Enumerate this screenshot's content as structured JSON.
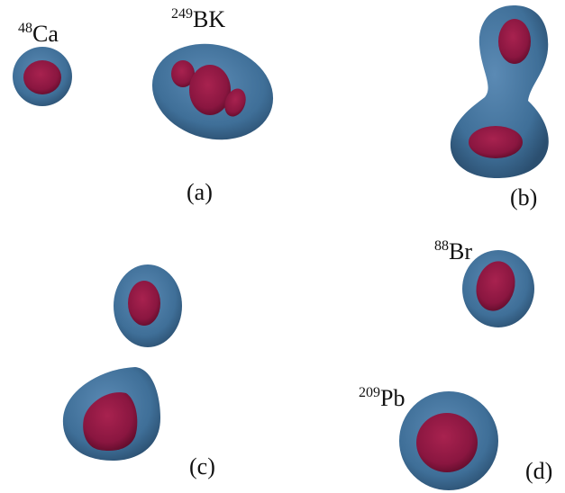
{
  "panels": [
    {
      "label": "(a)",
      "nuclei": [
        {
          "mass": "48",
          "symbol": "Ca"
        },
        {
          "mass": "249",
          "symbol": "BK"
        }
      ]
    },
    {
      "label": "(b)"
    },
    {
      "label": "(c)"
    },
    {
      "label": "(d)",
      "nuclei": [
        {
          "mass": "88",
          "symbol": "Br"
        },
        {
          "mass": "209",
          "symbol": "Pb"
        }
      ]
    }
  ]
}
